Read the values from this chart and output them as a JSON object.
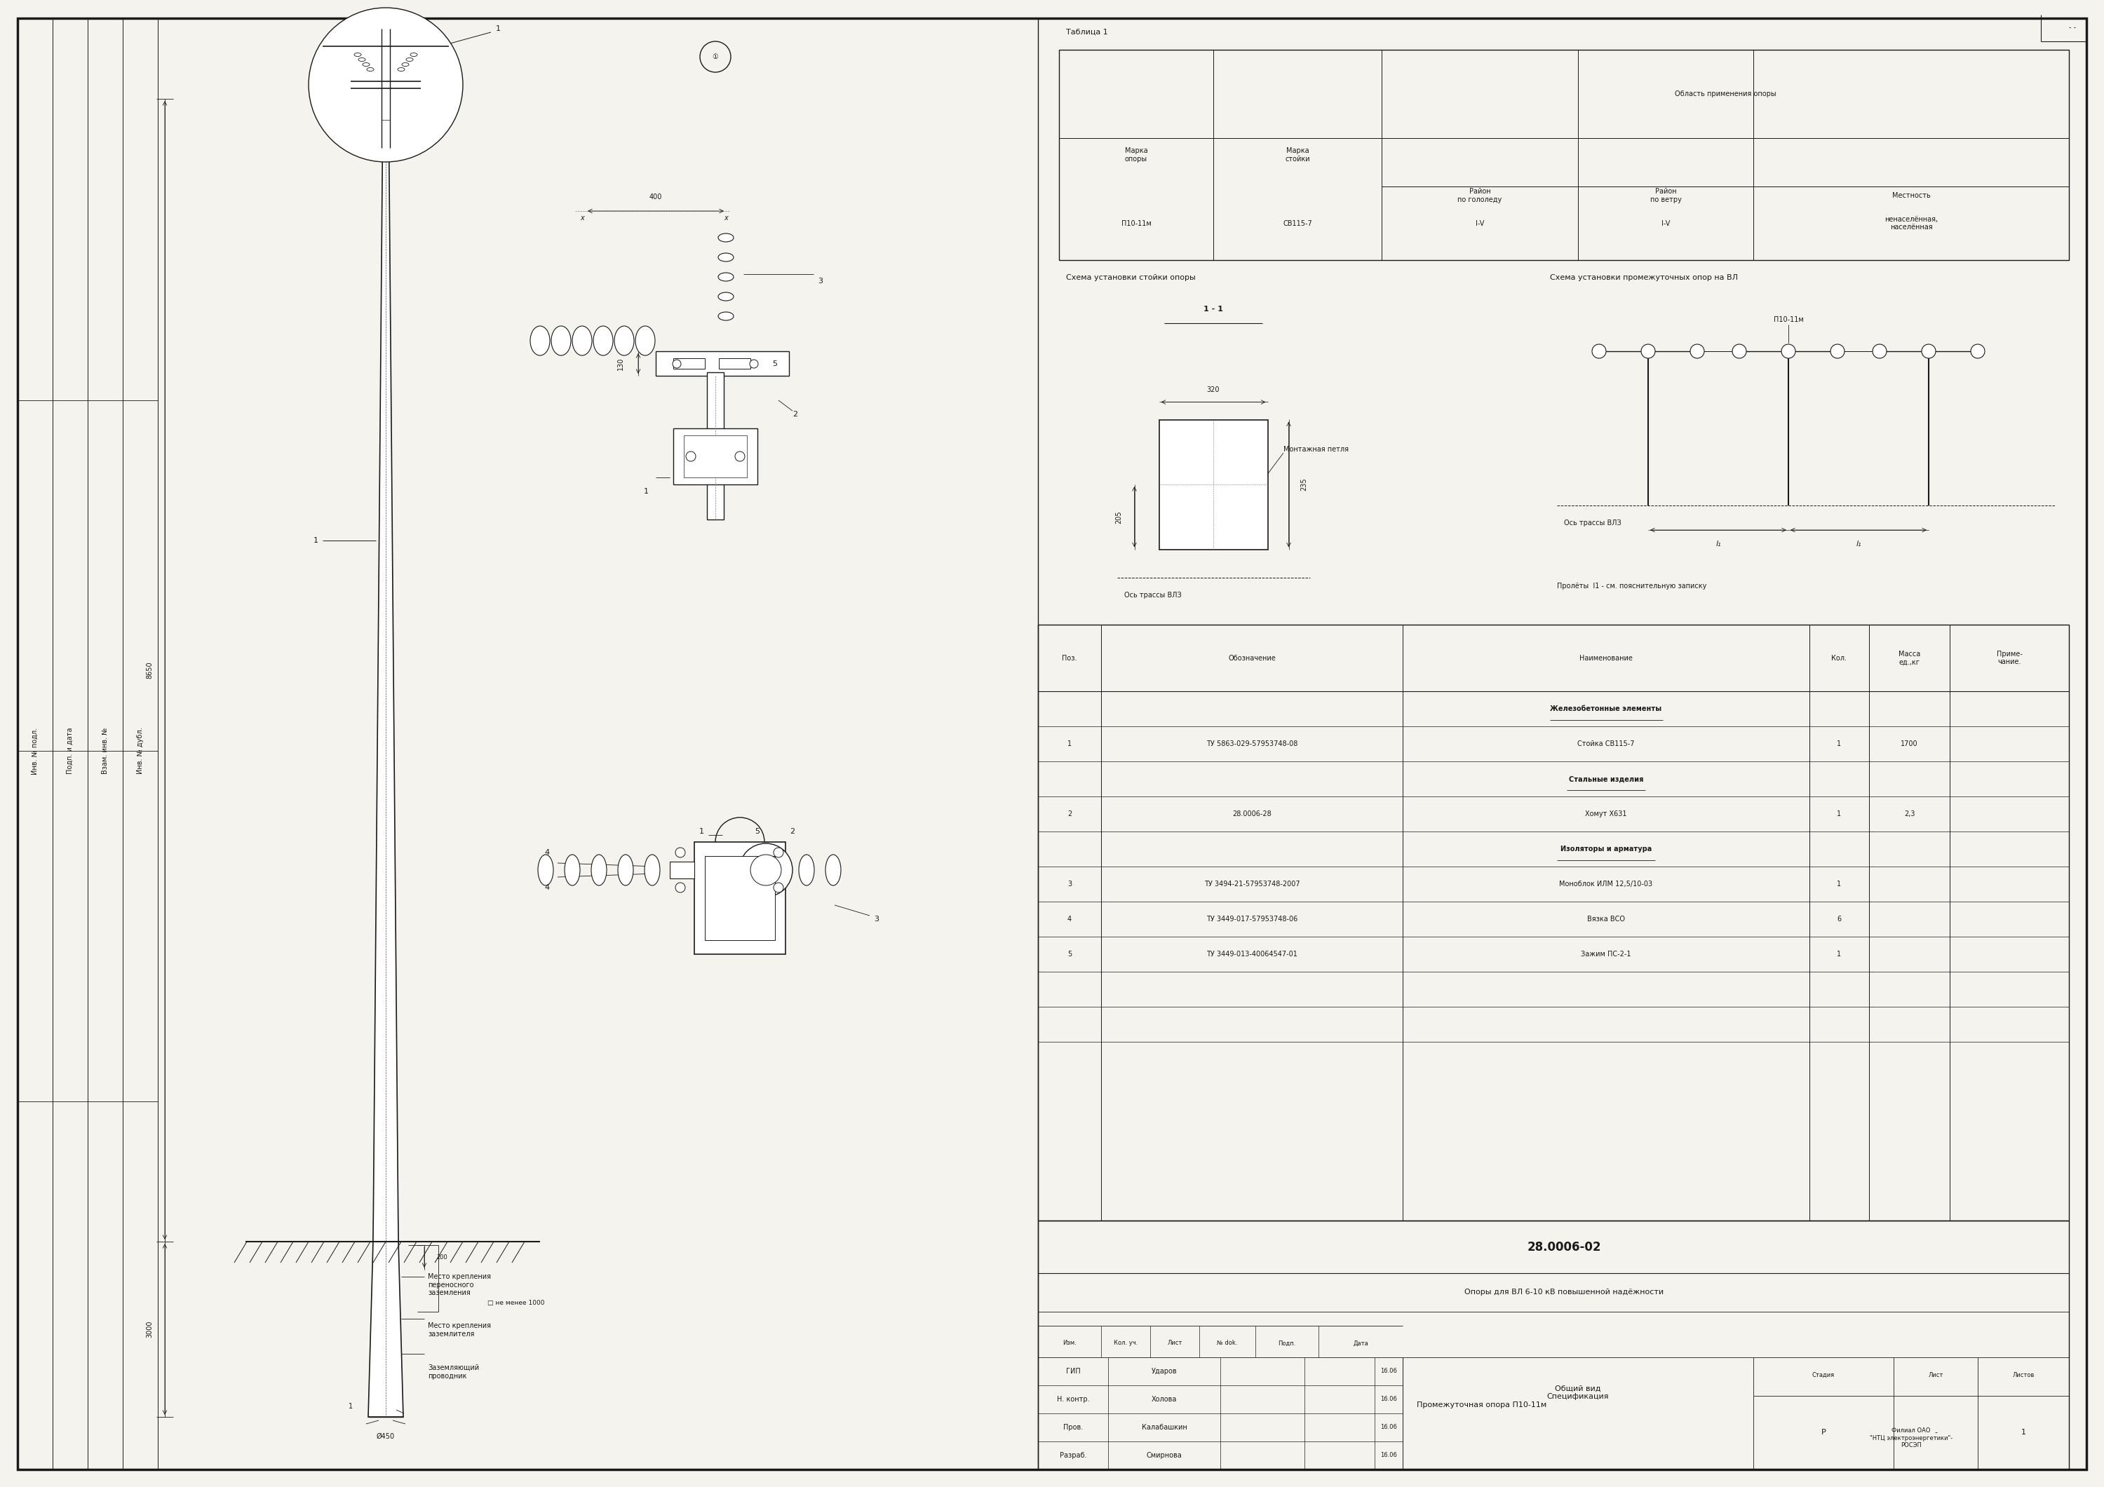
{
  "bg_color": "#f5f3ee",
  "line_color": "#1a1a1a",
  "title": "28.0006-02",
  "subtitle": "Опоры для ВЛ 6-10 кВ повышенной надёжности",
  "drawing_title": "Промежуточная опора П10-11м",
  "view_title": "Общий вид\nСпецификация",
  "company": "Филиал ОАО\n\"НТЦ электроэнергетики\"-\nРОСЭП",
  "table1_title": "Таблица 1",
  "spec_headers": [
    "Поз.",
    "Обозначение",
    "Наименование",
    "Кол.",
    "Масса\nед.,кг",
    "Приме-\nчание."
  ],
  "stamp_rows": [
    [
      "ГИП",
      "Ударов",
      "16.06"
    ],
    [
      "Н. контр.",
      "Холова",
      "16.06"
    ],
    [
      "Пров.",
      "Калабашкин",
      "16.06"
    ],
    [
      "Разраб.",
      "Смирнова",
      "16.06"
    ]
  ],
  "stamp_headers": [
    "Изм.",
    "Кол. уч.",
    "Лист",
    "№ dok.",
    "Подп.",
    "Дата"
  ],
  "stage": "Р",
  "sheet": "-",
  "sheets": "1",
  "dim_400": "400",
  "dim_130": "130",
  "dim_8650": "8650",
  "dim_3000": "3000",
  "dim_200": "200",
  "dim_450": "Ø450",
  "dim_320": "320",
  "dim_205": "205",
  "dim_235": "235",
  "note_1": "Место крепления\nпереносного\nзаземления",
  "note_2": "Место крепления\nзаземлителя",
  "note_3": "Заземляющий\nпроводник",
  "axis_label": "Ось трассы ВЛЗ",
  "pole_label": "П10-11м",
  "montag_label": "Монтажная петля",
  "schema1_title": "Схема установки стойки опоры",
  "schema2_title": "Схема установки промежуточных опор на ВЛ",
  "prolety_note": "Пролёты  l1 - см. пояснительную записку"
}
